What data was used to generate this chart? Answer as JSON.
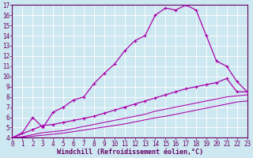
{
  "background_color": "#cde8f0",
  "line_color": "#aa00aa",
  "xlabel": "Windchill (Refroidissement éolien,°C)",
  "xlim": [
    0,
    23
  ],
  "ylim": [
    4,
    17
  ],
  "yticks": [
    4,
    5,
    6,
    7,
    8,
    9,
    10,
    11,
    12,
    13,
    14,
    15,
    16,
    17
  ],
  "xticks": [
    0,
    1,
    2,
    3,
    4,
    5,
    6,
    7,
    8,
    9,
    10,
    11,
    12,
    13,
    14,
    15,
    16,
    17,
    18,
    19,
    20,
    21,
    22,
    23
  ],
  "curve1_x": [
    0,
    1,
    2,
    3,
    4,
    5,
    6,
    7,
    8,
    9,
    10,
    11,
    12,
    13,
    14,
    15,
    16,
    17,
    18,
    19,
    20,
    21,
    22,
    23
  ],
  "curve1_y": [
    4.0,
    4.5,
    6.0,
    5.0,
    6.5,
    7.0,
    7.7,
    8.0,
    9.3,
    10.3,
    11.2,
    12.5,
    13.5,
    14.0,
    16.0,
    16.7,
    16.5,
    17.0,
    16.5,
    14.0,
    11.5,
    11.0,
    9.5,
    8.5
  ],
  "curve2_x": [
    0,
    2,
    3,
    4,
    5,
    6,
    7,
    8,
    9,
    10,
    11,
    12,
    13,
    14,
    15,
    16,
    17,
    18,
    19,
    20,
    21,
    22,
    23
  ],
  "curve2_y": [
    4.0,
    4.8,
    5.2,
    5.3,
    5.5,
    5.7,
    5.9,
    6.1,
    6.4,
    6.7,
    7.0,
    7.3,
    7.6,
    7.9,
    8.2,
    8.5,
    8.8,
    9.0,
    9.2,
    9.4,
    9.8,
    8.5,
    8.5
  ],
  "curve3_x": [
    0,
    1,
    2,
    3,
    4,
    5,
    6,
    7,
    8,
    9,
    10,
    11,
    12,
    13,
    14,
    15,
    16,
    17,
    18,
    19,
    20,
    21,
    22,
    23
  ],
  "curve3_y": [
    4.0,
    4.1,
    4.3,
    4.5,
    4.6,
    4.7,
    4.9,
    5.1,
    5.3,
    5.5,
    5.7,
    5.9,
    6.1,
    6.3,
    6.6,
    6.8,
    7.0,
    7.2,
    7.4,
    7.6,
    7.8,
    8.0,
    8.1,
    8.2
  ],
  "curve4_x": [
    0,
    1,
    2,
    3,
    4,
    5,
    6,
    7,
    8,
    9,
    10,
    11,
    12,
    13,
    14,
    15,
    16,
    17,
    18,
    19,
    20,
    21,
    22,
    23
  ],
  "curve4_y": [
    4.0,
    4.05,
    4.15,
    4.25,
    4.35,
    4.45,
    4.6,
    4.75,
    4.9,
    5.05,
    5.2,
    5.35,
    5.55,
    5.75,
    5.95,
    6.1,
    6.3,
    6.5,
    6.7,
    6.9,
    7.1,
    7.3,
    7.5,
    7.6
  ],
  "tick_color": "#660066",
  "tick_fontsize": 5.5,
  "xlabel_fontsize": 6.0,
  "xlabel_fontweight": "bold"
}
